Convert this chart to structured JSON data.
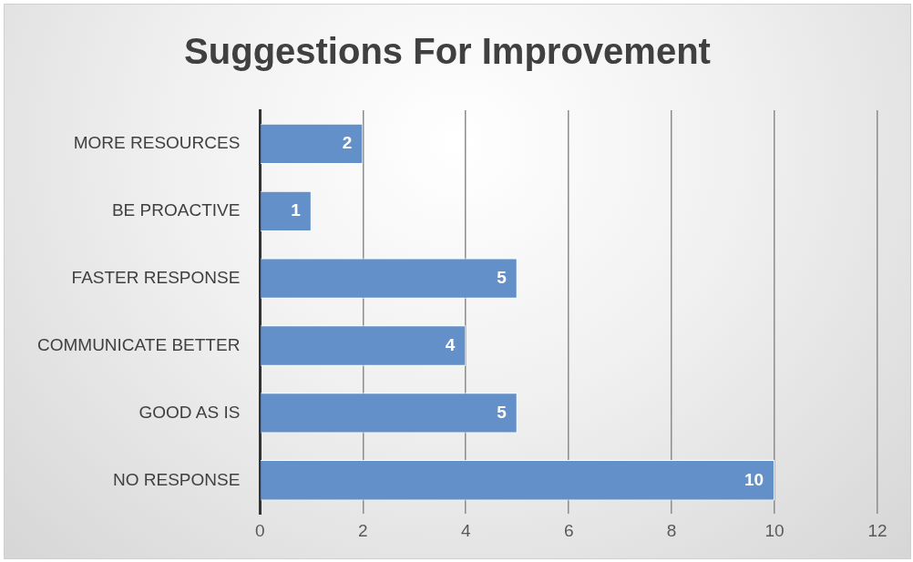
{
  "chart_data": {
    "type": "bar",
    "orientation": "horizontal",
    "title": "Suggestions For Improvement",
    "categories": [
      "MORE RESOURCES",
      "BE PROACTIVE",
      "FASTER RESPONSE",
      "COMMUNICATE BETTER",
      "GOOD AS IS",
      "NO RESPONSE"
    ],
    "values": [
      2,
      1,
      5,
      4,
      5,
      10
    ],
    "color": "#6390c8",
    "xlim": [
      0,
      12
    ],
    "xticks": [
      0,
      2,
      4,
      6,
      8,
      10,
      12
    ],
    "grid": "x",
    "data_labels": true,
    "legend": false
  }
}
